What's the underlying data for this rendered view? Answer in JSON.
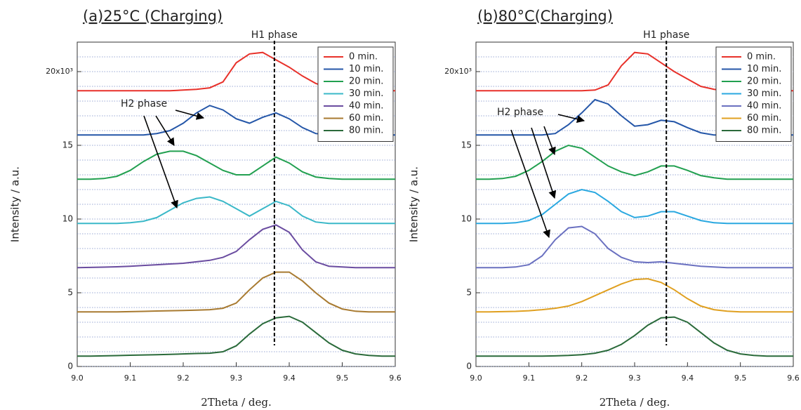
{
  "chart_data": [
    {
      "type": "line",
      "title": "(a)25°C (Charging)",
      "y_label": "Intensity / a.u.",
      "x_label": "2Theta / deg.",
      "annotations": [
        "H1 phase",
        "H2 phase"
      ],
      "h1_line_x": 9.372,
      "xlim": [
        9,
        9.6
      ],
      "xticks": [
        {
          "value": 9,
          "label": "9.0"
        },
        9.1,
        9.2,
        9.3,
        9.4,
        9.5,
        9.6
      ],
      "ylim": [
        0,
        22
      ],
      "yticks": [
        0,
        5,
        10,
        15,
        {
          "value": 20,
          "label": "20x10³"
        }
      ],
      "minor_yticks": [
        1,
        2,
        3,
        4,
        6,
        7,
        8,
        9,
        11,
        12,
        13,
        14,
        16,
        17,
        18,
        19,
        21
      ],
      "grid": true,
      "legend": "upper right",
      "x": [
        9,
        9.025,
        9.05,
        9.075,
        9.1,
        9.125,
        9.15,
        9.175,
        9.2,
        9.225,
        9.25,
        9.275,
        9.3,
        9.325,
        9.35,
        9.375,
        9.4,
        9.425,
        9.45,
        9.475,
        9.5,
        9.525,
        9.55,
        9.575,
        9.6
      ],
      "series": [
        {
          "name": "0 min.",
          "color": "#e8312a",
          "values": [
            18.7,
            18.7,
            18.7,
            18.7,
            18.7,
            18.7,
            18.7,
            18.7,
            18.75,
            18.8,
            18.9,
            19.3,
            20.6,
            21.2,
            21.3,
            20.8,
            20.3,
            19.7,
            19.2,
            18.9,
            18.8,
            18.75,
            18.7,
            18.7,
            18.7
          ]
        },
        {
          "name": "10 min.",
          "color": "#2456a8",
          "values": [
            15.7,
            15.7,
            15.7,
            15.7,
            15.7,
            15.7,
            15.8,
            16.0,
            16.5,
            17.2,
            17.7,
            17.4,
            16.8,
            16.5,
            16.9,
            17.2,
            16.8,
            16.2,
            15.8,
            15.7,
            15.7,
            15.7,
            15.7,
            15.7,
            15.7
          ]
        },
        {
          "name": "20 min.",
          "color": "#22a050",
          "values": [
            12.7,
            12.7,
            12.75,
            12.9,
            13.3,
            13.9,
            14.4,
            14.6,
            14.6,
            14.3,
            13.8,
            13.3,
            13.0,
            13.0,
            13.6,
            14.2,
            13.8,
            13.2,
            12.85,
            12.75,
            12.7,
            12.7,
            12.7,
            12.7,
            12.7
          ]
        },
        {
          "name": "30 min.",
          "color": "#3ab8c8",
          "values": [
            9.7,
            9.7,
            9.7,
            9.7,
            9.75,
            9.85,
            10.1,
            10.6,
            11.1,
            11.4,
            11.5,
            11.2,
            10.7,
            10.2,
            10.7,
            11.2,
            10.9,
            10.2,
            9.8,
            9.7,
            9.7,
            9.7,
            9.7,
            9.7,
            9.7
          ]
        },
        {
          "name": "40 min.",
          "color": "#6a4ca0",
          "values": [
            6.7,
            6.72,
            6.74,
            6.76,
            6.8,
            6.85,
            6.9,
            6.95,
            7.0,
            7.1,
            7.2,
            7.4,
            7.8,
            8.6,
            9.3,
            9.6,
            9.1,
            7.9,
            7.1,
            6.8,
            6.75,
            6.7,
            6.7,
            6.7,
            6.7
          ]
        },
        {
          "name": "60 min.",
          "color": "#a87a30",
          "values": [
            3.7,
            3.7,
            3.7,
            3.7,
            3.72,
            3.74,
            3.76,
            3.78,
            3.8,
            3.82,
            3.85,
            3.95,
            4.3,
            5.2,
            6.0,
            6.4,
            6.4,
            5.8,
            5.0,
            4.3,
            3.9,
            3.75,
            3.7,
            3.7,
            3.7
          ]
        },
        {
          "name": "80 min.",
          "color": "#2a6a3a",
          "values": [
            0.7,
            0.7,
            0.72,
            0.74,
            0.76,
            0.78,
            0.8,
            0.82,
            0.85,
            0.88,
            0.9,
            1.0,
            1.4,
            2.2,
            2.9,
            3.3,
            3.4,
            3.0,
            2.3,
            1.6,
            1.1,
            0.85,
            0.75,
            0.7,
            0.7
          ]
        }
      ]
    },
    {
      "type": "line",
      "title": "(b)80°C(Charging)",
      "y_label": "Intensity / a.u.",
      "x_label": "2Theta / deg.",
      "annotations": [
        "H1 phase",
        "H2 phase"
      ],
      "h1_line_x": 9.36,
      "xlim": [
        9,
        9.6
      ],
      "xticks": [
        {
          "value": 9,
          "label": "9.0"
        },
        9.1,
        9.2,
        9.3,
        9.4,
        9.5,
        9.6
      ],
      "ylim": [
        0,
        22
      ],
      "yticks": [
        0,
        5,
        10,
        15,
        {
          "value": 20,
          "label": "20x10³"
        }
      ],
      "minor_yticks": [
        1,
        2,
        3,
        4,
        6,
        7,
        8,
        9,
        11,
        12,
        13,
        14,
        16,
        17,
        18,
        19,
        21
      ],
      "grid": true,
      "legend": "upper right",
      "x": [
        9,
        9.025,
        9.05,
        9.075,
        9.1,
        9.125,
        9.15,
        9.175,
        9.2,
        9.225,
        9.25,
        9.275,
        9.3,
        9.325,
        9.35,
        9.375,
        9.4,
        9.425,
        9.45,
        9.475,
        9.5,
        9.525,
        9.55,
        9.575,
        9.6
      ],
      "series": [
        {
          "name": "0 min.",
          "color": "#e8312a",
          "values": [
            18.7,
            18.7,
            18.7,
            18.7,
            18.7,
            18.7,
            18.7,
            18.7,
            18.7,
            18.75,
            19.1,
            20.4,
            21.3,
            21.2,
            20.6,
            20.0,
            19.5,
            19.0,
            18.8,
            18.7,
            18.7,
            18.7,
            18.7,
            18.7,
            18.7
          ]
        },
        {
          "name": "10 min.",
          "color": "#2456a8",
          "values": [
            15.7,
            15.7,
            15.7,
            15.7,
            15.7,
            15.7,
            15.8,
            16.4,
            17.2,
            18.1,
            17.8,
            17.0,
            16.3,
            16.4,
            16.7,
            16.6,
            16.2,
            15.85,
            15.7,
            15.7,
            15.7,
            15.7,
            15.7,
            15.7,
            15.7
          ]
        },
        {
          "name": "20 min.",
          "color": "#22a050",
          "values": [
            12.7,
            12.7,
            12.75,
            12.9,
            13.3,
            13.9,
            14.6,
            15.0,
            14.8,
            14.2,
            13.6,
            13.2,
            12.95,
            13.2,
            13.6,
            13.6,
            13.3,
            12.95,
            12.8,
            12.7,
            12.7,
            12.7,
            12.7,
            12.7,
            12.7
          ]
        },
        {
          "name": "30 min.",
          "color": "#2aa8e0",
          "values": [
            9.7,
            9.7,
            9.7,
            9.75,
            9.9,
            10.3,
            11.0,
            11.7,
            12.0,
            11.8,
            11.2,
            10.5,
            10.1,
            10.2,
            10.5,
            10.5,
            10.2,
            9.9,
            9.75,
            9.7,
            9.7,
            9.7,
            9.7,
            9.7,
            9.7
          ]
        },
        {
          "name": "40 min.",
          "color": "#6a70c0",
          "values": [
            6.7,
            6.7,
            6.7,
            6.75,
            6.9,
            7.5,
            8.6,
            9.4,
            9.5,
            9.0,
            8.0,
            7.4,
            7.1,
            7.05,
            7.1,
            7.0,
            6.9,
            6.8,
            6.75,
            6.7,
            6.7,
            6.7,
            6.7,
            6.7,
            6.7
          ]
        },
        {
          "name": "60 min.",
          "color": "#e0a020",
          "values": [
            3.7,
            3.7,
            3.72,
            3.74,
            3.78,
            3.85,
            3.95,
            4.1,
            4.4,
            4.8,
            5.2,
            5.6,
            5.9,
            5.95,
            5.7,
            5.2,
            4.6,
            4.1,
            3.85,
            3.75,
            3.7,
            3.7,
            3.7,
            3.7,
            3.7
          ]
        },
        {
          "name": "80 min.",
          "color": "#2a6a3a",
          "values": [
            0.7,
            0.7,
            0.7,
            0.7,
            0.7,
            0.7,
            0.72,
            0.75,
            0.8,
            0.9,
            1.1,
            1.5,
            2.1,
            2.8,
            3.3,
            3.35,
            3.0,
            2.3,
            1.6,
            1.1,
            0.85,
            0.75,
            0.7,
            0.7,
            0.7
          ]
        }
      ]
    }
  ]
}
